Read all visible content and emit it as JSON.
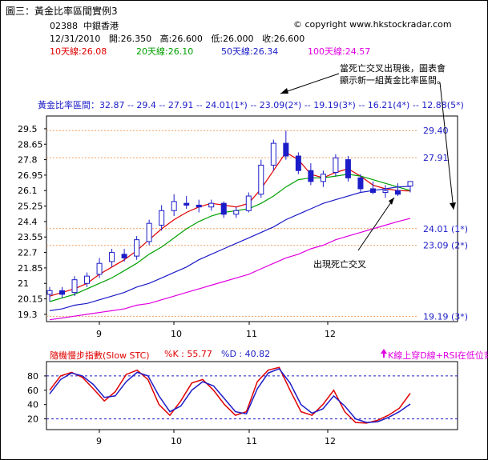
{
  "figure_title": "圖三：黃金比率區間實例3",
  "copyright": "© copyright www.hkstockradar.com",
  "stock": {
    "code": "02388",
    "name": "中銀香港"
  },
  "ohlc": {
    "date": "12/31/2010",
    "open_label": "開",
    "open": "26.350",
    "high_label": "高",
    "high": "26.600",
    "low_label": "低",
    "low": "26.000",
    "close_label": "收",
    "close": "26.600"
  },
  "moving_averages": [
    {
      "label": "10天線",
      "value": "26.08",
      "color": "#e00000"
    },
    {
      "label": "20天線",
      "value": "26.10",
      "color": "#00a000"
    },
    {
      "label": "50天線",
      "value": "26.34",
      "color": "#1c1cc8"
    },
    {
      "label": "100天線",
      "value": "24.57",
      "color": "#e000e0"
    }
  ],
  "golden_ratio_range": "黃金比率區間：32.87 -- 29.4 -- 27.91 -- 24.01(1*) -- 23.09(2*) -- 19.19(3*) -- 16.21(4*) -- 12.88(5*)",
  "annotations": {
    "death_cross_new_range_line1": "當死亡交叉出現後，圖表會",
    "death_cross_new_range_line2": "顯示新一組黃金比率區間。",
    "death_cross": "出現死亡交叉"
  },
  "oscillator": {
    "title": "隨機慢步指數(Slow STC)",
    "k_label": "%K : 55.77",
    "d_label": "%D : 40.82",
    "signal_label": "K線上穿D線+RSI在低位背馳"
  },
  "colors": {
    "price_up": "#1c1cc8",
    "price_down": "#1c1cc8",
    "candle_up_fill": "#ffffff",
    "fib_line": "#f0a060"
  },
  "chart_data": [
    {
      "type": "candlestick",
      "x_tick_labels": [
        "9",
        "10",
        "11",
        "12"
      ],
      "y_tick_labels": [
        "29.5",
        "28.65",
        "27.8",
        "26.95",
        "26.1",
        "25.25",
        "24.4",
        "23.55",
        "22.7",
        "21.85",
        "21",
        "20.15",
        "19.3"
      ],
      "ylim": [
        18.9,
        30.2
      ],
      "fib_levels": [
        {
          "value": 29.4,
          "label": "29.40"
        },
        {
          "value": 27.91,
          "label": "27.91"
        },
        {
          "value": 24.01,
          "label": "24.01 (1*)"
        },
        {
          "value": 23.09,
          "label": "23.09 (2*)"
        },
        {
          "value": 19.19,
          "label": "19.19 (3*)"
        }
      ],
      "series": [
        {
          "name": "10天線",
          "values": [
            20.3,
            20.5,
            20.7,
            21.0,
            21.5,
            21.9,
            22.3,
            22.8,
            23.4,
            24.0,
            24.5,
            24.9,
            25.2,
            25.4,
            25.3,
            25.2,
            25.4,
            26.2,
            27.2,
            28.2,
            27.8,
            27.0,
            26.8,
            27.1,
            27.3,
            26.9,
            26.4,
            26.2,
            26.1,
            26.08
          ]
        },
        {
          "name": "20天線",
          "values": [
            20.0,
            20.2,
            20.4,
            20.7,
            21.0,
            21.3,
            21.7,
            22.1,
            22.6,
            23.0,
            23.5,
            24.0,
            24.4,
            24.7,
            24.9,
            25.0,
            25.1,
            25.4,
            25.8,
            26.3,
            26.7,
            26.8,
            26.8,
            26.9,
            27.0,
            26.9,
            26.7,
            26.5,
            26.3,
            26.1
          ]
        },
        {
          "name": "50天線",
          "values": [
            19.5,
            19.6,
            19.8,
            19.9,
            20.1,
            20.3,
            20.5,
            20.8,
            21.0,
            21.3,
            21.6,
            21.9,
            22.3,
            22.6,
            22.9,
            23.2,
            23.5,
            23.8,
            24.1,
            24.5,
            24.8,
            25.1,
            25.4,
            25.6,
            25.8,
            26.0,
            26.1,
            26.2,
            26.3,
            26.34
          ]
        },
        {
          "name": "100天線",
          "values": [
            19.0,
            19.1,
            19.2,
            19.3,
            19.4,
            19.5,
            19.6,
            19.8,
            19.9,
            20.1,
            20.3,
            20.5,
            20.7,
            20.9,
            21.1,
            21.3,
            21.5,
            21.8,
            22.1,
            22.4,
            22.6,
            22.9,
            23.1,
            23.4,
            23.6,
            23.8,
            24.0,
            24.2,
            24.4,
            24.57
          ]
        }
      ],
      "candles": [
        {
          "o": 20.4,
          "h": 20.8,
          "l": 20.0,
          "c": 20.6
        },
        {
          "o": 20.6,
          "h": 20.8,
          "l": 20.2,
          "c": 20.4
        },
        {
          "o": 20.5,
          "h": 21.4,
          "l": 20.3,
          "c": 21.2
        },
        {
          "o": 21.0,
          "h": 21.6,
          "l": 20.8,
          "c": 21.4
        },
        {
          "o": 21.5,
          "h": 22.4,
          "l": 21.3,
          "c": 22.1
        },
        {
          "o": 22.2,
          "h": 22.9,
          "l": 21.9,
          "c": 22.7
        },
        {
          "o": 22.6,
          "h": 22.9,
          "l": 22.2,
          "c": 22.4
        },
        {
          "o": 22.5,
          "h": 23.6,
          "l": 22.3,
          "c": 23.4
        },
        {
          "o": 23.3,
          "h": 24.5,
          "l": 23.1,
          "c": 24.3
        },
        {
          "o": 24.2,
          "h": 25.3,
          "l": 23.9,
          "c": 25.0
        },
        {
          "o": 25.0,
          "h": 25.9,
          "l": 24.7,
          "c": 25.5
        },
        {
          "o": 25.4,
          "h": 25.8,
          "l": 25.1,
          "c": 25.3
        },
        {
          "o": 25.3,
          "h": 25.6,
          "l": 24.9,
          "c": 25.2
        },
        {
          "o": 25.2,
          "h": 25.6,
          "l": 25.0,
          "c": 25.4
        },
        {
          "o": 25.4,
          "h": 25.5,
          "l": 24.6,
          "c": 24.8
        },
        {
          "o": 24.8,
          "h": 25.2,
          "l": 24.6,
          "c": 25.0
        },
        {
          "o": 25.0,
          "h": 26.0,
          "l": 24.9,
          "c": 25.8
        },
        {
          "o": 25.9,
          "h": 27.8,
          "l": 25.7,
          "c": 27.5
        },
        {
          "o": 27.5,
          "h": 28.9,
          "l": 27.2,
          "c": 28.7
        },
        {
          "o": 28.7,
          "h": 29.4,
          "l": 27.8,
          "c": 28.0
        },
        {
          "o": 28.0,
          "h": 28.2,
          "l": 27.0,
          "c": 27.2
        },
        {
          "o": 27.2,
          "h": 27.6,
          "l": 26.4,
          "c": 26.6
        },
        {
          "o": 26.6,
          "h": 27.2,
          "l": 26.3,
          "c": 27.0
        },
        {
          "o": 27.1,
          "h": 28.1,
          "l": 26.9,
          "c": 27.9
        },
        {
          "o": 27.8,
          "h": 28.0,
          "l": 26.6,
          "c": 26.8
        },
        {
          "o": 26.8,
          "h": 27.0,
          "l": 26.0,
          "c": 26.2
        },
        {
          "o": 26.2,
          "h": 26.6,
          "l": 25.9,
          "c": 26.0
        },
        {
          "o": 26.0,
          "h": 26.4,
          "l": 25.7,
          "c": 26.1
        },
        {
          "o": 26.1,
          "h": 26.5,
          "l": 25.8,
          "c": 25.9
        },
        {
          "o": 26.35,
          "h": 26.6,
          "l": 26.0,
          "c": 26.6
        }
      ]
    },
    {
      "type": "line",
      "title": "隨機慢步指數(Slow STC)",
      "x_tick_labels": [
        "9",
        "10",
        "11",
        "12"
      ],
      "y_tick_labels": [
        "80",
        "60",
        "40",
        "20"
      ],
      "ylim": [
        5,
        100
      ],
      "series": [
        {
          "name": "%K",
          "values": [
            60,
            80,
            85,
            78,
            62,
            45,
            58,
            82,
            88,
            75,
            40,
            25,
            45,
            70,
            75,
            60,
            40,
            25,
            30,
            72,
            88,
            92,
            60,
            30,
            25,
            40,
            60,
            30,
            15,
            14,
            18,
            25,
            35,
            55.77
          ]
        },
        {
          "name": "%D",
          "values": [
            55,
            75,
            84,
            80,
            68,
            50,
            52,
            72,
            85,
            80,
            52,
            30,
            38,
            60,
            72,
            66,
            48,
            30,
            27,
            62,
            84,
            90,
            70,
            40,
            28,
            34,
            52,
            38,
            20,
            15,
            16,
            22,
            30,
            40.82
          ]
        }
      ]
    }
  ]
}
